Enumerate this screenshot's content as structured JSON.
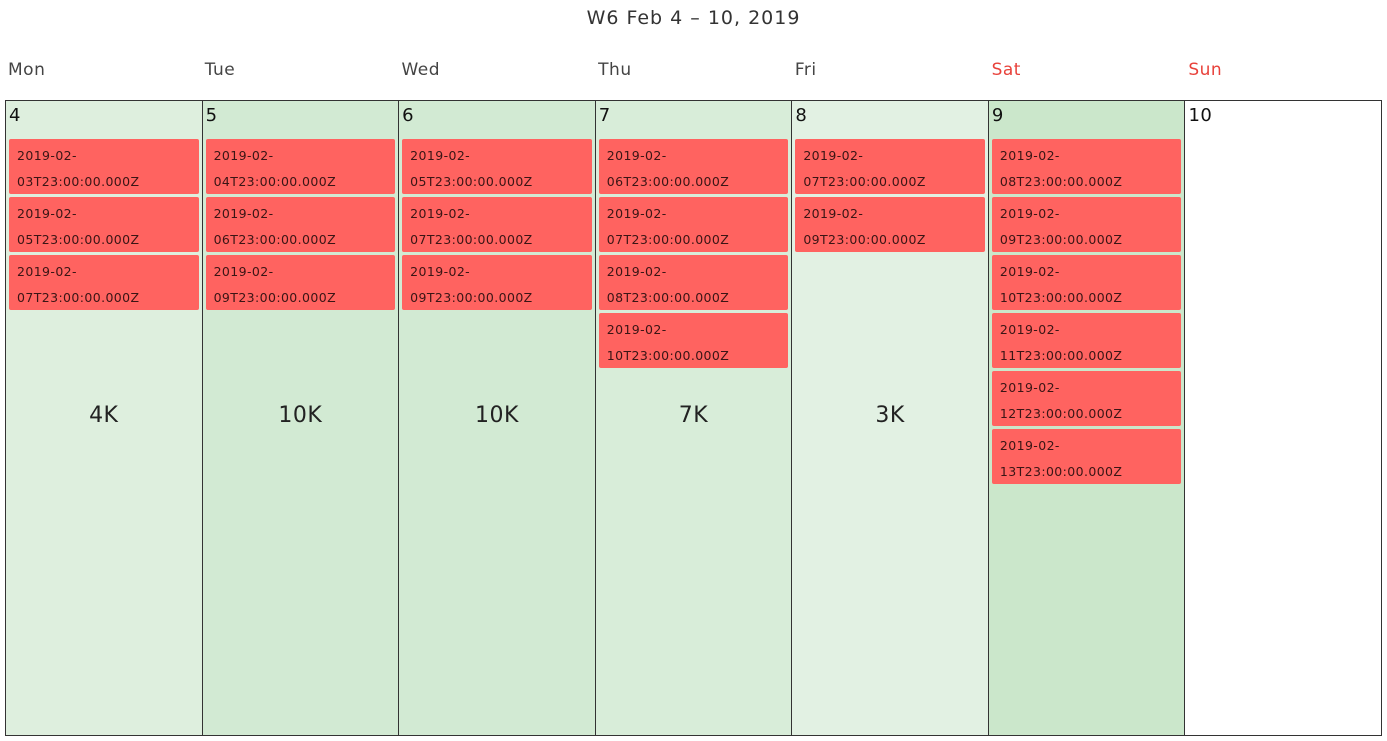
{
  "header": {
    "title": "W6 Feb 4 – 10, 2019"
  },
  "days": [
    {
      "name": "Mon",
      "number": "4",
      "total": "4K",
      "weekend": false,
      "bg": "#deefde",
      "events": [
        [
          "2019-02-",
          "03T23:00:00.000Z"
        ],
        [
          "2019-02-",
          "05T23:00:00.000Z"
        ],
        [
          "2019-02-",
          "07T23:00:00.000Z"
        ]
      ]
    },
    {
      "name": "Tue",
      "number": "5",
      "total": "10K",
      "weekend": false,
      "bg": "#d2ead3",
      "events": [
        [
          "2019-02-",
          "04T23:00:00.000Z"
        ],
        [
          "2019-02-",
          "06T23:00:00.000Z"
        ],
        [
          "2019-02-",
          "09T23:00:00.000Z"
        ]
      ]
    },
    {
      "name": "Wed",
      "number": "6",
      "total": "10K",
      "weekend": false,
      "bg": "#d2ead3",
      "events": [
        [
          "2019-02-",
          "05T23:00:00.000Z"
        ],
        [
          "2019-02-",
          "07T23:00:00.000Z"
        ],
        [
          "2019-02-",
          "09T23:00:00.000Z"
        ]
      ]
    },
    {
      "name": "Thu",
      "number": "7",
      "total": "7K",
      "weekend": false,
      "bg": "#d8edd9",
      "events": [
        [
          "2019-02-",
          "06T23:00:00.000Z"
        ],
        [
          "2019-02-",
          "07T23:00:00.000Z"
        ],
        [
          "2019-02-",
          "08T23:00:00.000Z"
        ],
        [
          "2019-02-",
          "10T23:00:00.000Z"
        ]
      ]
    },
    {
      "name": "Fri",
      "number": "8",
      "total": "3K",
      "weekend": false,
      "bg": "#e2f1e3",
      "events": [
        [
          "2019-02-",
          "07T23:00:00.000Z"
        ],
        [
          "2019-02-",
          "09T23:00:00.000Z"
        ]
      ]
    },
    {
      "name": "Sat",
      "number": "9",
      "total": "",
      "weekend": true,
      "bg": "#cbe7cb",
      "events": [
        [
          "2019-02-",
          "08T23:00:00.000Z"
        ],
        [
          "2019-02-",
          "09T23:00:00.000Z"
        ],
        [
          "2019-02-",
          "10T23:00:00.000Z"
        ],
        [
          "2019-02-",
          "11T23:00:00.000Z"
        ],
        [
          "2019-02-",
          "12T23:00:00.000Z"
        ],
        [
          "2019-02-",
          "13T23:00:00.000Z"
        ]
      ]
    },
    {
      "name": "Sun",
      "number": "10",
      "total": "",
      "weekend": true,
      "bg": "#ffffff",
      "events": []
    }
  ],
  "colors": {
    "event_bg": "#ff6360",
    "weekend_label": "#e8413a"
  }
}
